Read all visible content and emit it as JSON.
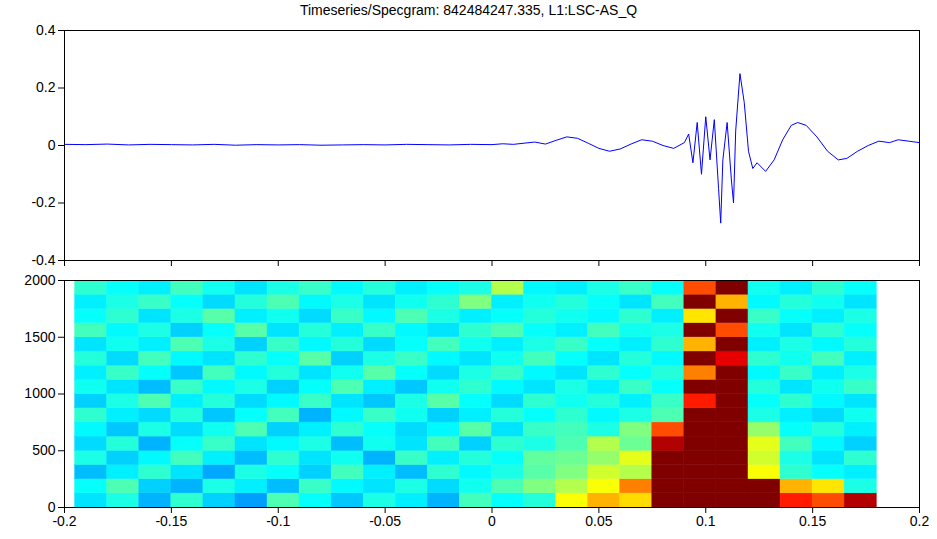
{
  "chart_data": [
    {
      "type": "line",
      "title": "Timeseries/Specgram: 842484247.335, L1:LSC-AS_Q",
      "color": "#0000ff",
      "tick_labels": "y",
      "xlim": [
        -0.2,
        0.2
      ],
      "xticks": [
        -0.2,
        -0.15,
        -0.1,
        -0.05,
        0,
        0.05,
        0.1,
        0.15,
        0.2
      ],
      "ylim": [
        -0.4,
        0.4
      ],
      "yticks": [
        -0.4,
        -0.2,
        0,
        0.2,
        0.4
      ],
      "x": [
        -0.2,
        -0.19,
        -0.18,
        -0.17,
        -0.16,
        -0.15,
        -0.14,
        -0.13,
        -0.12,
        -0.11,
        -0.1,
        -0.09,
        -0.08,
        -0.07,
        -0.06,
        -0.05,
        -0.04,
        -0.03,
        -0.02,
        -0.01,
        0,
        0.005,
        0.01,
        0.015,
        0.02,
        0.025,
        0.03,
        0.035,
        0.04,
        0.045,
        0.05,
        0.055,
        0.06,
        0.065,
        0.07,
        0.075,
        0.08,
        0.085,
        0.09,
        0.092,
        0.094,
        0.096,
        0.098,
        0.1,
        0.102,
        0.104,
        0.106,
        0.107,
        0.108,
        0.11,
        0.112,
        0.113,
        0.114,
        0.116,
        0.118,
        0.12,
        0.122,
        0.124,
        0.128,
        0.132,
        0.136,
        0.14,
        0.143,
        0.147,
        0.152,
        0.157,
        0.162,
        0.166,
        0.171,
        0.176,
        0.181,
        0.186,
        0.19,
        0.195,
        0.2
      ],
      "values": [
        0.004,
        0.003,
        0.005,
        0.002,
        0.004,
        0.003,
        0.002,
        0.004,
        0.001,
        0.003,
        0.002,
        0.003,
        0.001,
        0.002,
        0.003,
        0.002,
        0.004,
        0.003,
        0.002,
        0.004,
        0.003,
        0.006,
        0.004,
        0.008,
        0.012,
        0.005,
        0.018,
        0.03,
        0.025,
        0.008,
        -0.01,
        -0.02,
        -0.012,
        0.005,
        0.02,
        0.015,
        0,
        -0.01,
        0.01,
        0.04,
        -0.06,
        0.08,
        -0.1,
        0.1,
        -0.05,
        0.09,
        -0.15,
        -0.27,
        -0.05,
        0.08,
        -0.12,
        -0.2,
        0.05,
        0.25,
        0.15,
        -0.02,
        -0.08,
        -0.06,
        -0.09,
        -0.05,
        0.02,
        0.07,
        0.08,
        0.07,
        0.03,
        -0.02,
        -0.05,
        -0.045,
        -0.02,
        0,
        0.015,
        0.01,
        0.02,
        0.015,
        0.01
      ]
    },
    {
      "type": "heatmap",
      "xlim": [
        -0.2,
        0.2
      ],
      "xticks": [
        -0.2,
        -0.15,
        -0.1,
        -0.05,
        0,
        0.05,
        0.1,
        0.15,
        0.2
      ],
      "ylim": [
        0,
        2000
      ],
      "yticks": [
        0,
        500,
        1000,
        1500,
        2000
      ],
      "zlim": [
        0,
        1
      ],
      "x_edges": [
        -0.195,
        -0.18,
        -0.165,
        -0.15,
        -0.135,
        -0.12,
        -0.105,
        -0.09,
        -0.075,
        -0.06,
        -0.045,
        -0.03,
        -0.015,
        0,
        0.015,
        0.03,
        0.045,
        0.06,
        0.075,
        0.09,
        0.105,
        0.12,
        0.135,
        0.15,
        0.165,
        0.18
      ],
      "y_edges": [
        0,
        125,
        250,
        375,
        500,
        625,
        750,
        875,
        1000,
        1125,
        1250,
        1375,
        1500,
        1625,
        1750,
        1875,
        2000
      ],
      "z": [
        [
          0.35,
          0.4,
          0.3,
          0.42,
          0.33,
          0.28,
          0.45,
          0.38,
          0.32,
          0.4,
          0.36,
          0.3,
          0.44,
          0.38,
          0.41,
          0.62,
          0.7,
          0.66,
          1,
          1,
          1,
          1,
          0.85,
          0.8,
          0.95
        ],
        [
          0.38,
          0.45,
          0.33,
          0.3,
          0.4,
          0.36,
          0.31,
          0.43,
          0.37,
          0.35,
          0.4,
          0.34,
          0.39,
          0.45,
          0.5,
          0.55,
          0.62,
          0.75,
          1,
          1,
          1,
          1,
          0.7,
          0.65,
          0.4
        ],
        [
          0.31,
          0.36,
          0.42,
          0.35,
          0.29,
          0.4,
          0.38,
          0.33,
          0.44,
          0.36,
          0.31,
          0.42,
          0.37,
          0.4,
          0.46,
          0.5,
          0.58,
          0.55,
          1,
          1,
          1,
          0.62,
          0.42,
          0.38,
          0.36
        ],
        [
          0.4,
          0.33,
          0.37,
          0.44,
          0.36,
          0.31,
          0.42,
          0.35,
          0.39,
          0.3,
          0.43,
          0.36,
          0.41,
          0.38,
          0.47,
          0.48,
          0.52,
          0.6,
          1,
          1,
          1,
          0.58,
          0.4,
          0.35,
          0.42
        ],
        [
          0.34,
          0.41,
          0.3,
          0.38,
          0.43,
          0.35,
          0.37,
          0.4,
          0.31,
          0.39,
          0.35,
          0.44,
          0.33,
          0.42,
          0.4,
          0.45,
          0.55,
          0.48,
          0.95,
          1,
          1,
          0.6,
          0.44,
          0.37,
          0.33
        ],
        [
          0.37,
          0.32,
          0.4,
          0.34,
          0.39,
          0.45,
          0.33,
          0.36,
          0.42,
          0.38,
          0.34,
          0.37,
          0.46,
          0.35,
          0.43,
          0.44,
          0.4,
          0.5,
          0.8,
          1,
          1,
          0.52,
          0.38,
          0.41,
          0.36
        ],
        [
          0.42,
          0.36,
          0.34,
          0.41,
          0.32,
          0.38,
          0.44,
          0.3,
          0.37,
          0.43,
          0.39,
          0.33,
          0.36,
          0.41,
          0.38,
          0.42,
          0.37,
          0.4,
          0.45,
          1,
          1,
          0.4,
          0.36,
          0.34,
          0.39
        ],
        [
          0.33,
          0.4,
          0.45,
          0.36,
          0.41,
          0.34,
          0.37,
          0.43,
          0.35,
          0.32,
          0.4,
          0.46,
          0.38,
          0.34,
          0.42,
          0.39,
          0.41,
          0.36,
          0.43,
          0.85,
          1,
          0.38,
          0.42,
          0.37,
          0.35
        ],
        [
          0.39,
          0.35,
          0.31,
          0.43,
          0.37,
          0.4,
          0.33,
          0.38,
          0.45,
          0.36,
          0.32,
          0.39,
          0.42,
          0.37,
          0.35,
          0.4,
          0.36,
          0.43,
          0.38,
          1,
          1,
          0.41,
          0.35,
          0.39,
          0.43
        ],
        [
          0.36,
          0.43,
          0.38,
          0.32,
          0.44,
          0.37,
          0.41,
          0.35,
          0.39,
          0.46,
          0.38,
          0.34,
          0.4,
          0.43,
          0.37,
          0.35,
          0.42,
          0.38,
          0.41,
          0.75,
          1,
          0.37,
          0.43,
          0.36,
          0.4
        ],
        [
          0.41,
          0.34,
          0.44,
          0.37,
          0.35,
          0.42,
          0.38,
          0.46,
          0.33,
          0.4,
          0.43,
          0.37,
          0.35,
          0.39,
          0.44,
          0.38,
          0.35,
          0.41,
          0.37,
          1,
          0.9,
          0.42,
          0.39,
          0.44,
          0.36
        ],
        [
          0.35,
          0.39,
          0.36,
          0.45,
          0.4,
          0.33,
          0.43,
          0.37,
          0.41,
          0.34,
          0.38,
          0.44,
          0.39,
          0.36,
          0.4,
          0.43,
          0.38,
          0.36,
          0.42,
          0.7,
          1,
          0.36,
          0.4,
          0.37,
          0.41
        ],
        [
          0.44,
          0.37,
          0.4,
          0.33,
          0.38,
          0.46,
          0.35,
          0.41,
          0.36,
          0.43,
          0.37,
          0.35,
          0.42,
          0.45,
          0.38,
          0.36,
          0.44,
          0.39,
          0.4,
          1,
          0.8,
          0.39,
          0.35,
          0.42,
          0.38
        ],
        [
          0.38,
          0.42,
          0.35,
          0.4,
          0.46,
          0.36,
          0.39,
          0.34,
          0.43,
          0.37,
          0.45,
          0.4,
          0.36,
          0.38,
          0.41,
          0.39,
          0.37,
          0.42,
          0.36,
          0.65,
          1,
          0.43,
          0.38,
          0.36,
          0.4
        ],
        [
          0.36,
          0.4,
          0.43,
          0.38,
          0.34,
          0.41,
          0.45,
          0.37,
          0.4,
          0.35,
          0.39,
          0.42,
          0.5,
          0.36,
          0.39,
          0.41,
          0.38,
          0.35,
          0.44,
          1,
          0.7,
          0.37,
          0.41,
          0.39,
          0.35
        ],
        [
          0.42,
          0.38,
          0.36,
          0.44,
          0.39,
          0.35,
          0.4,
          0.43,
          0.37,
          0.41,
          0.36,
          0.38,
          0.4,
          0.55,
          0.37,
          0.36,
          0.4,
          0.43,
          0.38,
          0.8,
          1,
          0.39,
          0.36,
          0.42,
          0.38
        ]
      ]
    }
  ]
}
